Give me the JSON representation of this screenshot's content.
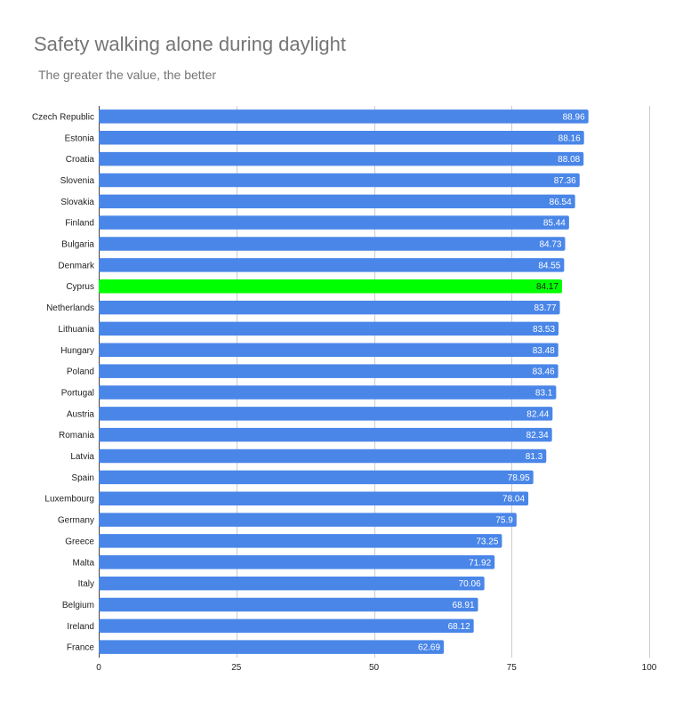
{
  "colors": {
    "bar": "#4a86e8",
    "highlight": "#00ff00",
    "grid": "#cccccc",
    "axis": "#444444"
  },
  "chart_data": {
    "type": "bar",
    "orientation": "horizontal",
    "title": "Safety walking alone during daylight",
    "subtitle": "The greater the value, the better",
    "categories": [
      "Czech Republic",
      "Estonia",
      "Croatia",
      "Slovenia",
      "Slovakia",
      "Finland",
      "Bulgaria",
      "Denmark",
      "Cyprus",
      "Netherlands",
      "Lithuania",
      "Hungary",
      "Poland",
      "Portugal",
      "Austria",
      "Romania",
      "Latvia",
      "Spain",
      "Luxembourg",
      "Germany",
      "Greece",
      "Malta",
      "Italy",
      "Belgium",
      "Ireland",
      "France"
    ],
    "values": [
      88.96,
      88.16,
      88.08,
      87.36,
      86.54,
      85.44,
      84.73,
      84.55,
      84.17,
      83.77,
      83.53,
      83.48,
      83.46,
      83.1,
      82.44,
      82.34,
      81.3,
      78.95,
      78.04,
      75.9,
      73.25,
      71.92,
      70.06,
      68.91,
      68.12,
      62.69
    ],
    "value_labels": [
      "88.96",
      "88.16",
      "88.08",
      "87.36",
      "86.54",
      "85.44",
      "84.73",
      "84.55",
      "84.17",
      "83.77",
      "83.53",
      "83.48",
      "83.46",
      "83.1",
      "82.44",
      "82.34",
      "81.3",
      "78.95",
      "78.04",
      "75.9",
      "73.25",
      "71.92",
      "70.06",
      "68.91",
      "68.12",
      "62.69"
    ],
    "highlighted_category": "Cyprus",
    "xlim": [
      0,
      100
    ],
    "x_ticks": [
      "0",
      "25",
      "50",
      "75",
      "100"
    ],
    "grid": true,
    "legend": "none"
  }
}
